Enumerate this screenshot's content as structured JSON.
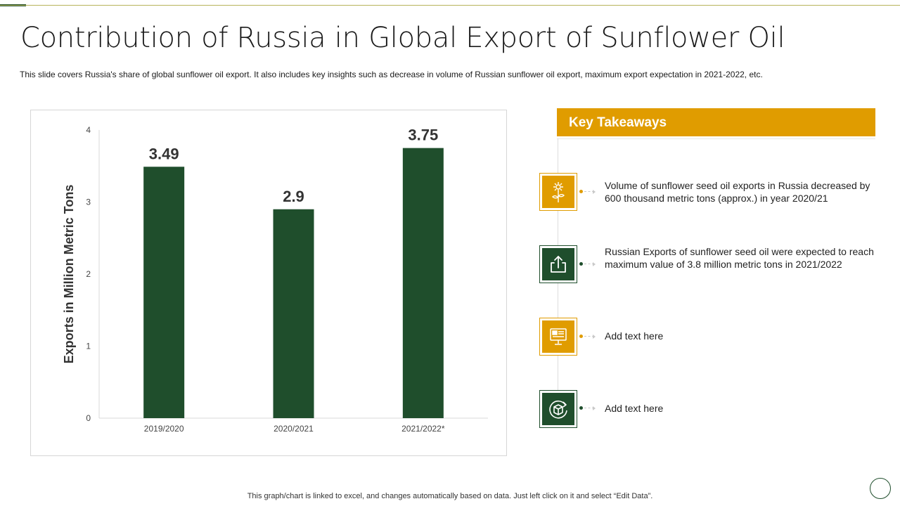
{
  "slide": {
    "title": "Contribution of Russia in Global Export of Sunflower Oil",
    "subtitle": "This slide covers Russia's share of global sunflower  oil export. It also includes key insights such as decrease  in volume  of Russian sunflower  oil export, maximum export expectation in 2021-2022,  etc.",
    "footer": "This graph/chart is linked to excel,  and changes automatically based on data. Just left click on it and select “Edit Data”."
  },
  "colors": {
    "bar": "#1f4e2c",
    "accent": "#e09c00",
    "dark_green": "#1f4e2c"
  },
  "chart_data": {
    "type": "bar",
    "categories": [
      "2019/2020",
      "2020/2021",
      "2021/2022*"
    ],
    "values": [
      3.49,
      2.9,
      3.75
    ],
    "data_labels": [
      "3.49",
      "2.9",
      "3.75"
    ],
    "title": "",
    "xlabel": "",
    "ylabel": "Exports in Million Metric Tons",
    "ylim": [
      0,
      4
    ],
    "yticks": [
      0,
      1,
      2,
      3,
      4
    ],
    "grid": false,
    "legend": "none"
  },
  "key_takeaways": {
    "header": "Key Takeaways",
    "items": [
      {
        "icon": "sunflower-icon",
        "style": "accent",
        "text": "Volume of sunflower seed oil exports in Russia decreased by 600 thousand metric tons (approx.) in year 2020/21"
      },
      {
        "icon": "export-icon",
        "style": "dark",
        "text": "Russian Exports of sunflower seed oil were expected to reach maximum value of 3.8 million metric tons in 2021/2022"
      },
      {
        "icon": "monitor-icon",
        "style": "accent",
        "text": "Add text here"
      },
      {
        "icon": "box-return-icon",
        "style": "dark",
        "text": "Add text here"
      }
    ]
  }
}
